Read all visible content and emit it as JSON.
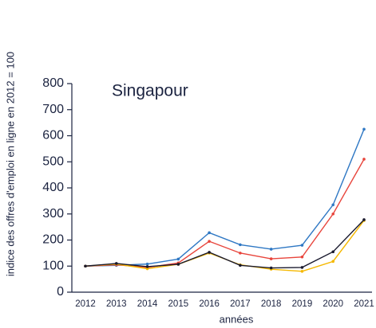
{
  "chart_data": {
    "type": "line",
    "title": "Singapour",
    "x_label": "années",
    "y_label": "indice des offres d'emploi en ligne en 2012 = 100",
    "categories": [
      "2012",
      "2013",
      "2014",
      "2015",
      "2016",
      "2017",
      "2018",
      "2019",
      "2020",
      "2021"
    ],
    "series": [
      {
        "color": "#2f78c4",
        "values": [
          100,
          103,
          108,
          127,
          228,
          182,
          165,
          180,
          335,
          625
        ]
      },
      {
        "color": "#e8453c",
        "values": [
          100,
          105,
          95,
          112,
          195,
          150,
          128,
          135,
          300,
          510
        ]
      },
      {
        "color": "#f5b800",
        "values": [
          100,
          108,
          90,
          107,
          150,
          105,
          88,
          80,
          118,
          275
        ]
      },
      {
        "color": "#1a1a2e",
        "values": [
          100,
          110,
          98,
          107,
          153,
          103,
          93,
          95,
          155,
          278
        ]
      }
    ],
    "ylim": [
      0,
      800
    ],
    "yticks": [
      0,
      100,
      200,
      300,
      400,
      500,
      600,
      700,
      800
    ],
    "grid": false
  }
}
